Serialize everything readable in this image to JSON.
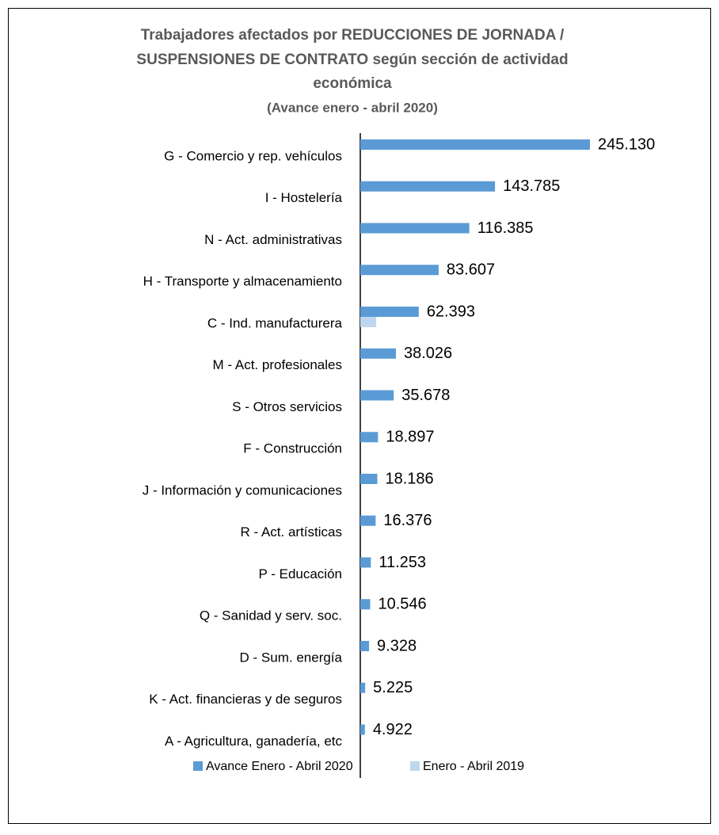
{
  "chart_data": {
    "type": "bar",
    "orientation": "horizontal",
    "title": [
      "Trabajadores  afectados por REDUCCIONES  DE JORNADA /",
      "SUSPENSIONES  DE CONTRATO según sección  de actividad",
      "económica"
    ],
    "subtitle": "(Avance enero - abril 2020)",
    "categories": [
      "G - Comercio y rep. vehículos",
      "I - Hostelería",
      "N - Act. administrativas",
      "H - Transporte y almacenamiento",
      "C - Ind. manufacturera",
      "M - Act. profesionales",
      "S - Otros servicios",
      "F - Construcción",
      "J - Información y comunicaciones",
      "R - Act. artísticas",
      "P - Educación",
      "Q - Sanidad y serv. soc.",
      "D - Sum. energía",
      "K - Act. financieras y de seguros",
      "A - Agricultura, ganadería, etc"
    ],
    "series": [
      {
        "name": "Avance Enero - Abril 2020",
        "color": "#5b9bd5",
        "values": [
          245130,
          143785,
          116385,
          83607,
          62393,
          38026,
          35678,
          18897,
          18186,
          16376,
          11253,
          10546,
          9328,
          5225,
          4922
        ],
        "value_labels": [
          "245.130",
          "143.785",
          "116.385",
          "83.607",
          "62.393",
          "38.026",
          "35.678",
          "18.897",
          "18.186",
          "16.376",
          "11.253",
          "10.546",
          "9.328",
          "5.225",
          "4.922"
        ]
      },
      {
        "name": "Enero - Abril 2019",
        "color": "#bdd7ee",
        "values": [
          0,
          0,
          0,
          0,
          17000,
          0,
          0,
          0,
          0,
          0,
          0,
          0,
          0,
          0,
          0
        ]
      }
    ],
    "legend": "bottom"
  }
}
